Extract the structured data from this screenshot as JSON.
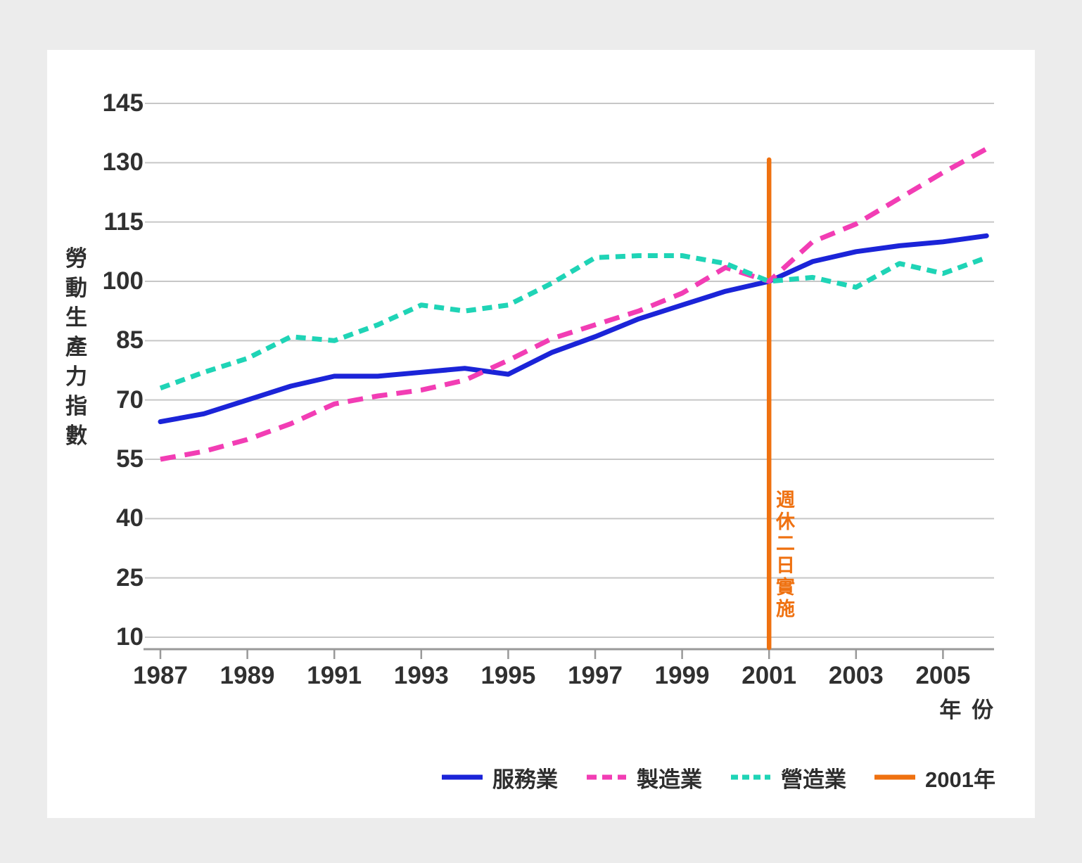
{
  "page": {
    "background_color": "#ececec",
    "card_color": "#ffffff",
    "text_color": "#303030"
  },
  "chart_data": {
    "type": "line",
    "title": "",
    "xlabel": "年 份",
    "ylabel": "勞動生產力指數",
    "x": [
      1987,
      1988,
      1989,
      1990,
      1991,
      1992,
      1993,
      1994,
      1995,
      1996,
      1997,
      1998,
      1999,
      2000,
      2001,
      2002,
      2003,
      2004,
      2005,
      2006
    ],
    "x_ticks": [
      1987,
      1989,
      1991,
      1993,
      1995,
      1997,
      1999,
      2001,
      2003,
      2005
    ],
    "y_ticks": [
      10,
      25,
      40,
      55,
      70,
      85,
      100,
      115,
      130,
      145
    ],
    "ylim": [
      10,
      145
    ],
    "grid": "horizontal",
    "grid_color": "#c7c7c7",
    "axis_color": "#999999",
    "legend_position": "bottom",
    "series": [
      {
        "key": "services",
        "name": "服務業",
        "color": "#1b24d8",
        "style": "solid",
        "values": [
          64.5,
          66.5,
          70,
          73.5,
          76,
          76,
          77,
          78,
          76.5,
          82,
          86,
          90.5,
          94,
          97.5,
          100,
          105,
          107.5,
          109,
          110,
          111.5
        ]
      },
      {
        "key": "manufacturing",
        "name": "製造業",
        "color": "#f23db4",
        "style": "dashed-long",
        "values": [
          55,
          57,
          60,
          64,
          69,
          71,
          72.5,
          75,
          80,
          85.5,
          89,
          92.5,
          97,
          103.5,
          100,
          110,
          114.5,
          121,
          127.5,
          133.5
        ]
      },
      {
        "key": "construction",
        "name": "營造業",
        "color": "#1fd4b6",
        "style": "dashed-short",
        "values": [
          73,
          77,
          80.5,
          86,
          85,
          89,
          94,
          92.5,
          94,
          99.5,
          106,
          106.5,
          106.5,
          104.5,
          100,
          101,
          98.5,
          104.5,
          102,
          106
        ]
      }
    ],
    "marker_line": {
      "key": "year-2001",
      "label": "2001年",
      "x": 2001,
      "color": "#ef7110",
      "annotation": "週休二日實施"
    }
  }
}
